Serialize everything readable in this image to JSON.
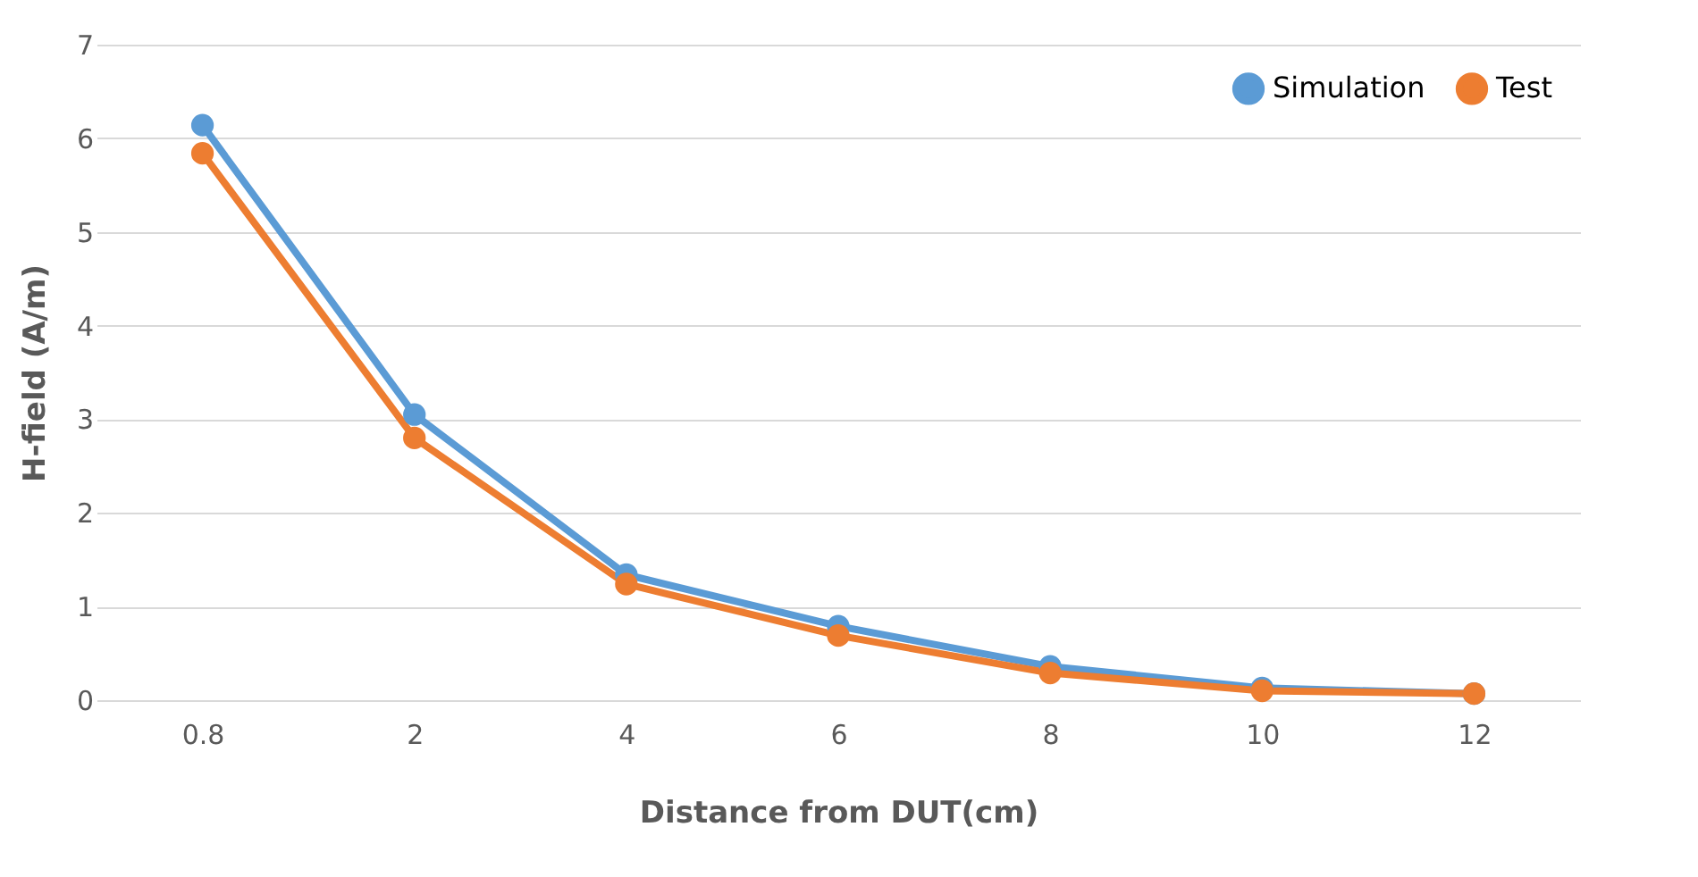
{
  "chart_data": {
    "type": "line",
    "xlabel": "Distance from DUT(cm)",
    "ylabel": "H-field (A/m)",
    "categories": [
      "0.8",
      "2",
      "4",
      "6",
      "8",
      "10",
      "12"
    ],
    "series": [
      {
        "name": "Simulation",
        "color": "#5b9bd5",
        "values": [
          6.14,
          3.05,
          1.34,
          0.79,
          0.36,
          0.13,
          0.07
        ]
      },
      {
        "name": "Test",
        "color": "#ed7d31",
        "values": [
          5.84,
          2.8,
          1.24,
          0.69,
          0.29,
          0.1,
          0.07
        ]
      }
    ],
    "ylim": [
      0,
      7
    ],
    "yticks": [
      0,
      1,
      2,
      3,
      4,
      5,
      6,
      7
    ],
    "grid": "y",
    "legend": "top right",
    "marker": "circle",
    "line_style": "solid"
  }
}
